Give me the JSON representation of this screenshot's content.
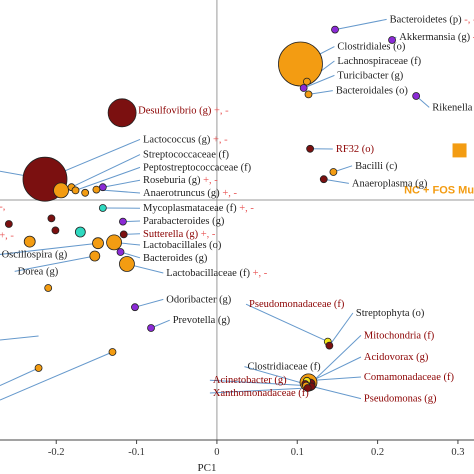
{
  "chart_data": {
    "type": "scatter",
    "title": "",
    "xlabel": "PC1",
    "ylabel": "",
    "xlim": [
      -0.27,
      0.32
    ],
    "ylim": [
      -0.3,
      0.25
    ],
    "x_ticks": [
      -0.2,
      -0.1,
      0,
      0.1,
      0.2,
      0.3
    ],
    "x_tick_labels": [
      "-0.2",
      "-0.1",
      "0",
      "0.1",
      "0.2",
      "0.3"
    ],
    "colors": {
      "maroon": "#7B1010",
      "orange": "#F39C12",
      "purple": "#8B2BD6",
      "teal": "#2ED9C0",
      "yellow": "#F5E61A",
      "ray": "#6699CC",
      "red_text": "#8B0000",
      "dark_text": "#222222",
      "plus_minus": "#E85050"
    },
    "special_point": {
      "x": 0.302,
      "y": 0.062,
      "color": "orange",
      "shape": "square",
      "text": "NC + FOS Muco"
    },
    "points": [
      {
        "x": 0.147,
        "y": 0.213,
        "r": 3.5,
        "color": "purple",
        "label_x": 0.215,
        "label_y": 0.222,
        "label": "Bacteroidetes (p)",
        "suffix": "-, -",
        "label_color": "dark"
      },
      {
        "x": 0.218,
        "y": 0.2,
        "r": 3.5,
        "color": "purple",
        "label_x": 0.227,
        "label_y": 0.2,
        "label": "Akkermansia (g)",
        "suffix": "-, +",
        "label_color": "dark"
      },
      {
        "x": 0.104,
        "y": 0.17,
        "r": 22,
        "color": "orange",
        "label_x": 0.15,
        "label_y": 0.188,
        "label": "Clostridiales (o)",
        "suffix": "",
        "label_color": "dark"
      },
      {
        "x": 0.112,
        "y": 0.148,
        "r": 3.5,
        "color": "orange",
        "label_x": 0.15,
        "label_y": 0.17,
        "label": "Lachnospiraceae (f)",
        "suffix": "",
        "label_color": "dark"
      },
      {
        "x": 0.108,
        "y": 0.14,
        "r": 3.5,
        "color": "purple",
        "label_x": 0.15,
        "label_y": 0.152,
        "label": "Turicibacter (g)",
        "suffix": "",
        "label_color": "dark"
      },
      {
        "x": 0.114,
        "y": 0.132,
        "r": 3.5,
        "color": "orange",
        "label_x": 0.148,
        "label_y": 0.133,
        "label": "Bacteroidales (o)",
        "suffix": "",
        "label_color": "dark"
      },
      {
        "x": 0.248,
        "y": 0.13,
        "r": 3.5,
        "color": "purple",
        "label_x": 0.268,
        "label_y": 0.112,
        "label": "Rikenella (g)",
        "suffix": "+, -",
        "label_color": "dark"
      },
      {
        "x": -0.118,
        "y": 0.109,
        "r": 14,
        "color": "maroon",
        "label_x": -0.098,
        "label_y": 0.108,
        "label": "Desulfovibrio (g)",
        "suffix": "+, -",
        "label_color": "red"
      },
      {
        "x": -0.214,
        "y": 0.026,
        "r": 22,
        "color": "maroon",
        "label_x": -0.092,
        "label_y": 0.072,
        "label": "Lactococcus (g)",
        "suffix": "+, -",
        "label_color": "dark"
      },
      {
        "x": -0.181,
        "y": 0.016,
        "r": 3.5,
        "color": "orange",
        "label_x": -0.092,
        "label_y": 0.053,
        "label": "Streptococcaceae (f)",
        "suffix": "",
        "label_color": "dark"
      },
      {
        "x": -0.176,
        "y": 0.012,
        "r": 3.5,
        "color": "orange",
        "label_x": -0.092,
        "label_y": 0.037,
        "label": "Peptostreptococcaceae (f)",
        "suffix": "",
        "label_color": "dark"
      },
      {
        "x": -0.142,
        "y": 0.016,
        "r": 3.5,
        "color": "purple",
        "label_x": -0.092,
        "label_y": 0.021,
        "label": "Roseburia (g)",
        "suffix": "+, -",
        "label_color": "dark"
      },
      {
        "x": -0.15,
        "y": 0.013,
        "r": 3.5,
        "color": "orange",
        "label_x": -0.092,
        "label_y": 0.005,
        "label": "Anaerotruncus (g)",
        "suffix": "+, -",
        "label_color": "dark"
      },
      {
        "x": -0.194,
        "y": 0.012,
        "r": 7.5,
        "color": "orange",
        "label_x": null,
        "label_y": null,
        "label": "",
        "suffix": "",
        "label_color": "dark"
      },
      {
        "x": -0.164,
        "y": 0.009,
        "r": 3.5,
        "color": "orange",
        "label_x": null,
        "label_y": null,
        "label": "",
        "suffix": "",
        "label_color": "dark"
      },
      {
        "x": 0.116,
        "y": 0.064,
        "r": 3.5,
        "color": "maroon",
        "label_x": 0.148,
        "label_y": 0.06,
        "label": "RF32 (o)",
        "suffix": "",
        "label_color": "red"
      },
      {
        "x": 0.145,
        "y": 0.035,
        "r": 3.5,
        "color": "orange",
        "label_x": 0.172,
        "label_y": 0.039,
        "label": "Bacilli (c)",
        "suffix": "",
        "label_color": "dark"
      },
      {
        "x": 0.133,
        "y": 0.026,
        "r": 3.5,
        "color": "maroon",
        "label_x": 0.168,
        "label_y": 0.017,
        "label": "Anaeroplasma (g)",
        "suffix": "",
        "label_color": "dark"
      },
      {
        "x": -0.142,
        "y": -0.01,
        "r": 3.5,
        "color": "teal",
        "label_x": -0.092,
        "label_y": -0.014,
        "label": "Mycoplasmataceae (f)",
        "suffix": "+, -",
        "label_color": "dark"
      },
      {
        "x": -0.117,
        "y": -0.027,
        "r": 3.5,
        "color": "purple",
        "label_x": -0.092,
        "label_y": -0.03,
        "label": "Parabacteroides (g)",
        "suffix": "",
        "label_color": "dark"
      },
      {
        "x": -0.116,
        "y": -0.043,
        "r": 3.5,
        "color": "maroon",
        "label_x": -0.092,
        "label_y": -0.046,
        "label": "Sutterella (g)",
        "suffix": "+, -",
        "label_color": "red"
      },
      {
        "x": -0.128,
        "y": -0.053,
        "r": 7.5,
        "color": "orange",
        "label_x": -0.092,
        "label_y": -0.06,
        "label": "Lactobacillales (o)",
        "suffix": "",
        "label_color": "dark"
      },
      {
        "x": -0.12,
        "y": -0.065,
        "r": 3.5,
        "color": "purple",
        "label_x": -0.092,
        "label_y": -0.076,
        "label": "Bacteroides (g)",
        "suffix": "",
        "label_color": "dark"
      },
      {
        "x": -0.112,
        "y": -0.08,
        "r": 7.5,
        "color": "orange",
        "label_x": -0.063,
        "label_y": -0.095,
        "label": "Lactobacillaceae (f)",
        "suffix": "+, -",
        "label_color": "dark"
      },
      {
        "x": -0.259,
        "y": -0.03,
        "r": 3.5,
        "color": "maroon",
        "label_x": null,
        "label_y": null,
        "label": "",
        "suffix": "",
        "label_color": "dark"
      },
      {
        "x": -0.206,
        "y": -0.023,
        "r": 3.5,
        "color": "maroon",
        "label_x": null,
        "label_y": null,
        "label": "",
        "suffix": "",
        "label_color": "dark"
      },
      {
        "x": -0.201,
        "y": -0.038,
        "r": 3.5,
        "color": "maroon",
        "label_x": null,
        "label_y": null,
        "label": "",
        "suffix": "",
        "label_color": "dark"
      },
      {
        "x": -0.17,
        "y": -0.04,
        "r": 5,
        "color": "teal",
        "label_x": null,
        "label_y": null,
        "label": "",
        "suffix": "",
        "label_color": "dark"
      },
      {
        "x": -0.233,
        "y": -0.052,
        "r": 5.5,
        "color": "orange",
        "label_x": null,
        "label_y": null,
        "label": "",
        "suffix": "",
        "label_color": "dark"
      },
      {
        "x": -0.148,
        "y": -0.054,
        "r": 5.5,
        "color": "orange",
        "label_x": -0.268,
        "label_y": -0.072,
        "label": "Oscillospira (g)",
        "suffix": "",
        "label_color": "dark"
      },
      {
        "x": -0.152,
        "y": -0.07,
        "r": 5,
        "color": "orange",
        "label_x": -0.248,
        "label_y": -0.093,
        "label": "Dorea (g)",
        "suffix": "",
        "label_color": "dark"
      },
      {
        "x": -0.21,
        "y": -0.11,
        "r": 3.5,
        "color": "orange",
        "label_x": null,
        "label_y": null,
        "label": "",
        "suffix": "",
        "label_color": "dark"
      },
      {
        "x": -0.102,
        "y": -0.134,
        "r": 3.5,
        "color": "purple",
        "label_x": -0.063,
        "label_y": -0.128,
        "label": "Odoribacter (g)",
        "suffix": "",
        "label_color": "dark"
      },
      {
        "x": -0.082,
        "y": -0.16,
        "r": 3.5,
        "color": "purple",
        "label_x": -0.055,
        "label_y": -0.154,
        "label": "Prevotella (g)",
        "suffix": "",
        "label_color": "dark"
      },
      {
        "x": -0.222,
        "y": -0.21,
        "r": 3.5,
        "color": "orange",
        "label_x": null,
        "label_y": null,
        "label": "",
        "suffix": "",
        "label_color": "dark"
      },
      {
        "x": -0.13,
        "y": -0.19,
        "r": 3.5,
        "color": "orange",
        "label_x": null,
        "label_y": null,
        "label": "",
        "suffix": "",
        "label_color": "dark"
      },
      {
        "x": 0.138,
        "y": -0.177,
        "r": 3.5,
        "color": "yellow",
        "label_x": 0.04,
        "label_y": -0.134,
        "label": "Pseudomonadaceae (f)",
        "suffix": "",
        "label_color": "red"
      },
      {
        "x": 0.14,
        "y": -0.182,
        "r": 3.5,
        "color": "maroon",
        "label_x": 0.173,
        "label_y": -0.145,
        "label": "Streptophyta (o)",
        "suffix": "",
        "label_color": "dark"
      },
      {
        "x": 0.116,
        "y": -0.23,
        "r": 5,
        "color": "maroon",
        "label_x": 0.183,
        "label_y": -0.173,
        "label": "Mitochondria (f)",
        "suffix": "",
        "label_color": "red"
      },
      {
        "x": 0.114,
        "y": -0.228,
        "r": 8.5,
        "color": "orange",
        "label_x": 0.183,
        "label_y": -0.2,
        "label": "Acidovorax (g)",
        "suffix": "",
        "label_color": "red"
      },
      {
        "x": 0.112,
        "y": -0.226,
        "r": 3.5,
        "color": "yellow",
        "label_x": 0.183,
        "label_y": -0.225,
        "label": "Comamonadaceae (f)",
        "suffix": "",
        "label_color": "red"
      },
      {
        "x": 0.118,
        "y": -0.233,
        "r": 3.5,
        "color": "maroon",
        "label_x": 0.183,
        "label_y": -0.252,
        "label": "Pseudomonas (g)",
        "suffix": "",
        "label_color": "red"
      },
      {
        "x": 0.11,
        "y": -0.23,
        "r": 3.5,
        "color": "maroon",
        "label_x": 0.038,
        "label_y": -0.212,
        "label": "Clostridiaceae (f)",
        "suffix": "",
        "label_color": "dark"
      },
      {
        "x": 0.111,
        "y": -0.232,
        "r": 3.5,
        "color": "orange",
        "label_x": -0.005,
        "label_y": -0.229,
        "label": "Acinetobacter (g)",
        "suffix": "",
        "label_color": "red"
      },
      {
        "x": 0.113,
        "y": -0.235,
        "r": 3.5,
        "color": "maroon",
        "label_x": -0.005,
        "label_y": -0.245,
        "label": "Xanthomonadaceae (f)",
        "suffix": "",
        "label_color": "red"
      }
    ],
    "offscreen_rays": [
      {
        "from_x": -0.27,
        "from_y": 0.036,
        "to_x": -0.214,
        "to_y": 0.026
      },
      {
        "from_x": -0.27,
        "from_y": -0.175,
        "to_x": -0.222,
        "to_y": -0.17
      },
      {
        "from_x": -0.27,
        "from_y": -0.232,
        "to_x": -0.222,
        "to_y": -0.21
      },
      {
        "from_x": -0.27,
        "from_y": -0.25,
        "to_x": -0.13,
        "to_y": -0.19
      }
    ],
    "edge_fragments": [
      {
        "x": -0.271,
        "y": -0.012,
        "text": "-,",
        "color": "plus_minus"
      },
      {
        "x": -0.271,
        "y": -0.048,
        "text": "+, -",
        "color": "plus_minus"
      }
    ]
  }
}
